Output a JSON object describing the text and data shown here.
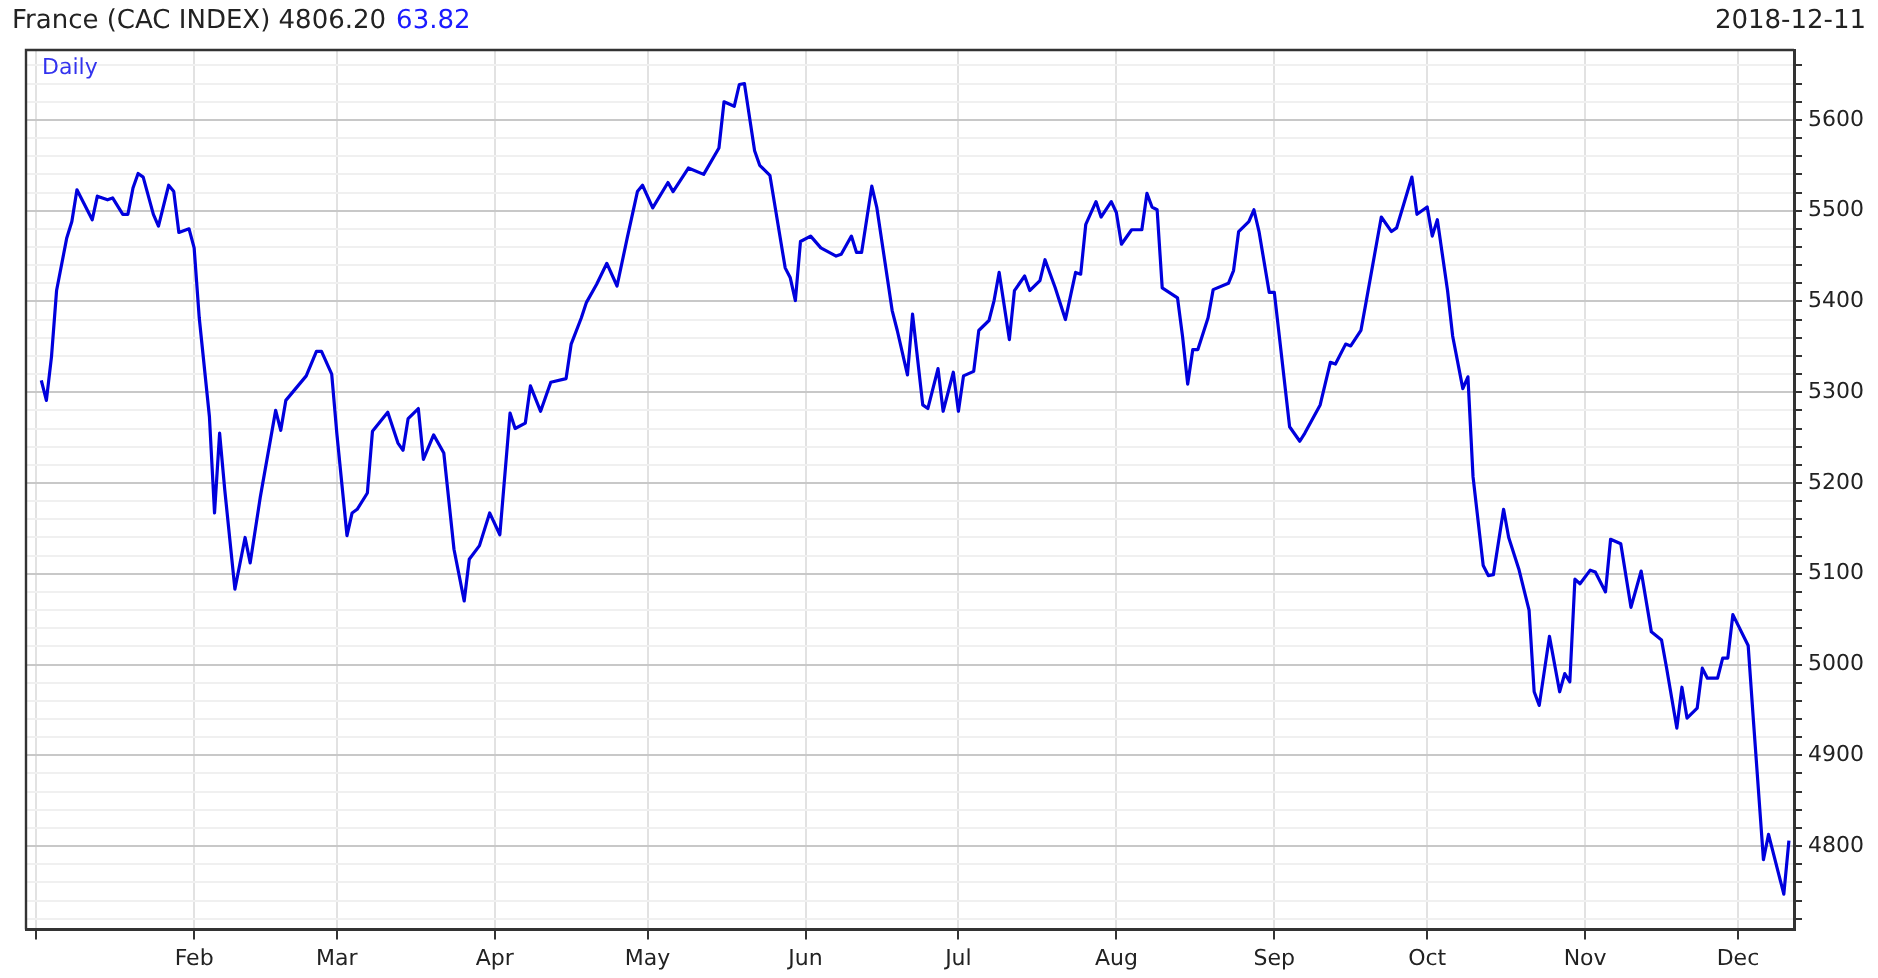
{
  "chart_data": {
    "type": "line",
    "title": "France (CAC INDEX) 4806.20",
    "subtitle": "Daily",
    "annotations": [
      "63.82",
      "2018-12-11"
    ],
    "xlim": [
      "2017-12-30",
      "2018-12-12"
    ],
    "xticks": [
      {
        "value": "2018-01-01",
        "label": null
      },
      {
        "value": "2018-02-01",
        "label": "Feb"
      },
      {
        "value": "2018-03-01",
        "label": "Mar"
      },
      {
        "value": "2018-04-01",
        "label": "Apr"
      },
      {
        "value": "2018-05-01",
        "label": "May"
      },
      {
        "value": "2018-06-01",
        "label": "Jun"
      },
      {
        "value": "2018-07-01",
        "label": "Jul"
      },
      {
        "value": "2018-08-01",
        "label": "Aug"
      },
      {
        "value": "2018-09-01",
        "label": "Sep"
      },
      {
        "value": "2018-10-01",
        "label": "Oct"
      },
      {
        "value": "2018-11-01",
        "label": "Nov"
      },
      {
        "value": "2018-12-01",
        "label": "Dec"
      }
    ],
    "ylim": [
      4708,
      5677
    ],
    "yticks": [
      {
        "value": 4720,
        "label": null
      },
      {
        "value": 4740,
        "label": null
      },
      {
        "value": 4760,
        "label": null
      },
      {
        "value": 4780,
        "label": null
      },
      4800,
      {
        "value": 4820,
        "label": null
      },
      {
        "value": 4840,
        "label": null
      },
      {
        "value": 4860,
        "label": null
      },
      {
        "value": 4880,
        "label": null
      },
      4900,
      {
        "value": 4920,
        "label": null
      },
      {
        "value": 4940,
        "label": null
      },
      {
        "value": 4960,
        "label": null
      },
      {
        "value": 4980,
        "label": null
      },
      5000,
      {
        "value": 5020,
        "label": null
      },
      {
        "value": 5040,
        "label": null
      },
      {
        "value": 5060,
        "label": null
      },
      {
        "value": 5080,
        "label": null
      },
      5100,
      {
        "value": 5120,
        "label": null
      },
      {
        "value": 5140,
        "label": null
      },
      {
        "value": 5160,
        "label": null
      },
      {
        "value": 5180,
        "label": null
      },
      5200,
      {
        "value": 5220,
        "label": null
      },
      {
        "value": 5240,
        "label": null
      },
      {
        "value": 5260,
        "label": null
      },
      {
        "value": 5280,
        "label": null
      },
      5300,
      {
        "value": 5320,
        "label": null
      },
      {
        "value": 5340,
        "label": null
      },
      {
        "value": 5360,
        "label": null
      },
      {
        "value": 5380,
        "label": null
      },
      5400,
      {
        "value": 5420,
        "label": null
      },
      {
        "value": 5440,
        "label": null
      },
      {
        "value": 5460,
        "label": null
      },
      {
        "value": 5480,
        "label": null
      },
      5500,
      {
        "value": 5520,
        "label": null
      },
      {
        "value": 5540,
        "label": null
      },
      {
        "value": 5560,
        "label": null
      },
      {
        "value": 5580,
        "label": null
      },
      5600,
      {
        "value": 5620,
        "label": null
      },
      {
        "value": 5640,
        "label": null
      },
      {
        "value": 5660,
        "label": null
      }
    ],
    "grid": true,
    "marker": "none",
    "line_style": "solid",
    "x": [
      "2018-01-02",
      "2018-01-03",
      "2018-01-04",
      "2018-01-05",
      "2018-01-07",
      "2018-01-08",
      "2018-01-09",
      "2018-01-12",
      "2018-01-13",
      "2018-01-15",
      "2018-01-16",
      "2018-01-18",
      "2018-01-19",
      "2018-01-20",
      "2018-01-21",
      "2018-01-22",
      "2018-01-24",
      "2018-01-25",
      "2018-01-27",
      "2018-01-28",
      "2018-01-29",
      "2018-01-31",
      "2018-02-01",
      "2018-02-02",
      "2018-02-04",
      "2018-02-05",
      "2018-02-06",
      "2018-02-07",
      "2018-02-09",
      "2018-02-11",
      "2018-02-12",
      "2018-02-14",
      "2018-02-17",
      "2018-02-18",
      "2018-02-19",
      "2018-02-23",
      "2018-02-25",
      "2018-02-26",
      "2018-02-28",
      "2018-03-01",
      "2018-03-03",
      "2018-03-04",
      "2018-03-05",
      "2018-03-07",
      "2018-03-08",
      "2018-03-11",
      "2018-03-13",
      "2018-03-14",
      "2018-03-15",
      "2018-03-17",
      "2018-03-18",
      "2018-03-20",
      "2018-03-22",
      "2018-03-24",
      "2018-03-26",
      "2018-03-27",
      "2018-03-29",
      "2018-03-31",
      "2018-04-02",
      "2018-04-04",
      "2018-04-05",
      "2018-04-07",
      "2018-04-08",
      "2018-04-10",
      "2018-04-12",
      "2018-04-15",
      "2018-04-16",
      "2018-04-18",
      "2018-04-19",
      "2018-04-21",
      "2018-04-23",
      "2018-04-25",
      "2018-04-27",
      "2018-04-29",
      "2018-04-30",
      "2018-05-02",
      "2018-05-05",
      "2018-05-06",
      "2018-05-09",
      "2018-05-12",
      "2018-05-15",
      "2018-05-16",
      "2018-05-18",
      "2018-05-19",
      "2018-05-20",
      "2018-05-22",
      "2018-05-23",
      "2018-05-25",
      "2018-05-28",
      "2018-05-29",
      "2018-05-30",
      "2018-05-31",
      "2018-06-02",
      "2018-06-04",
      "2018-06-07",
      "2018-06-08",
      "2018-06-10",
      "2018-06-11",
      "2018-06-12",
      "2018-06-14",
      "2018-06-15",
      "2018-06-18",
      "2018-06-19",
      "2018-06-21",
      "2018-06-22",
      "2018-06-24",
      "2018-06-25",
      "2018-06-27",
      "2018-06-28",
      "2018-06-30",
      "2018-07-01",
      "2018-07-02",
      "2018-07-04",
      "2018-07-05",
      "2018-07-07",
      "2018-07-08",
      "2018-07-09",
      "2018-07-11",
      "2018-07-12",
      "2018-07-14",
      "2018-07-15",
      "2018-07-17",
      "2018-07-18",
      "2018-07-20",
      "2018-07-22",
      "2018-07-24",
      "2018-07-25",
      "2018-07-26",
      "2018-07-28",
      "2018-07-29",
      "2018-07-31",
      "2018-08-01",
      "2018-08-02",
      "2018-08-04",
      "2018-08-06",
      "2018-08-07",
      "2018-08-08",
      "2018-08-09",
      "2018-08-10",
      "2018-08-13",
      "2018-08-14",
      "2018-08-15",
      "2018-08-16",
      "2018-08-17",
      "2018-08-19",
      "2018-08-20",
      "2018-08-23",
      "2018-08-24",
      "2018-08-25",
      "2018-08-27",
      "2018-08-28",
      "2018-08-29",
      "2018-08-31",
      "2018-09-01",
      "2018-09-02",
      "2018-09-04",
      "2018-09-06",
      "2018-09-07",
      "2018-09-10",
      "2018-09-12",
      "2018-09-13",
      "2018-09-15",
      "2018-09-16",
      "2018-09-18",
      "2018-09-19",
      "2018-09-22",
      "2018-09-24",
      "2018-09-25",
      "2018-09-28",
      "2018-09-29",
      "2018-10-01",
      "2018-10-02",
      "2018-10-03",
      "2018-10-05",
      "2018-10-06",
      "2018-10-08",
      "2018-10-09",
      "2018-10-10",
      "2018-10-12",
      "2018-10-13",
      "2018-10-14",
      "2018-10-16",
      "2018-10-17",
      "2018-10-19",
      "2018-10-21",
      "2018-10-22",
      "2018-10-23",
      "2018-10-25",
      "2018-10-27",
      "2018-10-28",
      "2018-10-29",
      "2018-10-30",
      "2018-10-31",
      "2018-11-02",
      "2018-11-03",
      "2018-11-05",
      "2018-11-06",
      "2018-11-08",
      "2018-11-09",
      "2018-11-10",
      "2018-11-12",
      "2018-11-14",
      "2018-11-16",
      "2018-11-17",
      "2018-11-19",
      "2018-11-20",
      "2018-11-21",
      "2018-11-23",
      "2018-11-24",
      "2018-11-25",
      "2018-11-27",
      "2018-11-28",
      "2018-11-29",
      "2018-11-30",
      "2018-12-03",
      "2018-12-04",
      "2018-12-06",
      "2018-12-07",
      "2018-12-10",
      "2018-12-11"
    ],
    "series": [
      {
        "color": "#0000dd",
        "values": [
          5313,
          5291,
          5339,
          5412,
          5470,
          5488,
          5523,
          5490,
          5516,
          5512,
          5514,
          5496,
          5496,
          5525,
          5541,
          5537,
          5496,
          5483,
          5528,
          5521,
          5476,
          5480,
          5459,
          5382,
          5273,
          5167,
          5255,
          5193,
          5083,
          5140,
          5112,
          5185,
          5280,
          5258,
          5291,
          5318,
          5345,
          5345,
          5320,
          5255,
          5142,
          5167,
          5171,
          5189,
          5257,
          5278,
          5244,
          5236,
          5271,
          5282,
          5226,
          5253,
          5233,
          5127,
          5070,
          5116,
          5131,
          5167,
          5143,
          5277,
          5260,
          5266,
          5307,
          5279,
          5311,
          5315,
          5353,
          5382,
          5399,
          5419,
          5442,
          5417,
          5470,
          5521,
          5528,
          5503,
          5531,
          5521,
          5547,
          5540,
          5569,
          5620,
          5615,
          5639,
          5640,
          5566,
          5550,
          5539,
          5437,
          5426,
          5401,
          5466,
          5472,
          5459,
          5450,
          5452,
          5472,
          5454,
          5454,
          5527,
          5503,
          5390,
          5368,
          5319,
          5386,
          5286,
          5282,
          5326,
          5279,
          5322,
          5279,
          5318,
          5323,
          5368,
          5379,
          5401,
          5432,
          5358,
          5412,
          5428,
          5412,
          5423,
          5446,
          5415,
          5380,
          5432,
          5430,
          5485,
          5510,
          5493,
          5510,
          5498,
          5463,
          5479,
          5479,
          5519,
          5504,
          5501,
          5415,
          5404,
          5361,
          5309,
          5347,
          5347,
          5382,
          5413,
          5420,
          5434,
          5477,
          5488,
          5501,
          5477,
          5410,
          5410,
          5361,
          5262,
          5246,
          5255,
          5286,
          5333,
          5331,
          5353,
          5351,
          5368,
          5399,
          5493,
          5477,
          5481,
          5537,
          5496,
          5504,
          5472,
          5490,
          5412,
          5362,
          5304,
          5317,
          5207,
          5109,
          5098,
          5099,
          5171,
          5140,
          5105,
          5060,
          4970,
          4955,
          5031,
          4970,
          4990,
          4981,
          5094,
          5089,
          5104,
          5102,
          5080,
          5138,
          5133,
          5098,
          5063,
          5103,
          5036,
          5027,
          4996,
          4930,
          4975,
          4941,
          4952,
          4996,
          4985,
          4985,
          5007,
          5007,
          5055,
          5021,
          4941,
          4785,
          4813,
          4747,
          4806
        ]
      }
    ]
  }
}
